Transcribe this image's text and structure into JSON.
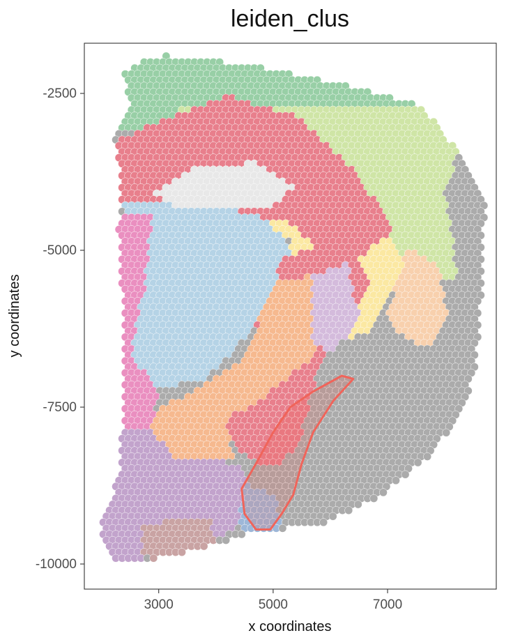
{
  "chart_data": {
    "type": "scatter",
    "title": "leiden_clus",
    "xlabel": "x coordinates",
    "ylabel": "y coordinates",
    "xlim": [
      1700,
      8900
    ],
    "ylim": [
      -10400,
      -1700
    ],
    "x_ticks": [
      3000,
      5000,
      7000
    ],
    "y_ticks": [
      -2500,
      -5000,
      -7500,
      -10000
    ],
    "x_tick_labels": [
      "3000",
      "5000",
      "7000"
    ],
    "y_tick_labels": [
      "-2500",
      "-5000",
      "-7500",
      "-10000"
    ],
    "grid": false,
    "legend": "none",
    "spot_spacing": 110,
    "cluster_colors": {
      "green": "#98cfa6",
      "lightgreen": "#cfe5a6",
      "yellow": "#fbe8a2",
      "lightgray": "#e8e8e8",
      "red": "#e87f8c",
      "lightblue": "#b5d3e6",
      "orange": "#f6b98f",
      "pink": "#ea8fc0",
      "purple": "#c2a3cc",
      "gray": "#ababab",
      "peach": "#f8d0ad",
      "blue": "#9db7d8",
      "brown": "#c9a3a3",
      "lilac": "#d4bbdc"
    },
    "tissue_outline": [
      [
        3100,
        -1900
      ],
      [
        4600,
        -2050
      ],
      [
        6200,
        -2350
      ],
      [
        7600,
        -2700
      ],
      [
        8300,
        -3500
      ],
      [
        8700,
        -4300
      ],
      [
        8650,
        -5500
      ],
      [
        8550,
        -6800
      ],
      [
        8300,
        -7600
      ],
      [
        7700,
        -8300
      ],
      [
        6900,
        -8900
      ],
      [
        5900,
        -9350
      ],
      [
        4600,
        -9500
      ],
      [
        3900,
        -9700
      ],
      [
        3100,
        -9900
      ],
      [
        2200,
        -9950
      ],
      [
        1950,
        -9500
      ],
      [
        2300,
        -8600
      ],
      [
        2400,
        -7500
      ],
      [
        2400,
        -6500
      ],
      [
        2350,
        -5500
      ],
      [
        2300,
        -4600
      ],
      [
        2350,
        -3700
      ],
      [
        2200,
        -3200
      ],
      [
        2500,
        -2800
      ],
      [
        2400,
        -2200
      ],
      [
        2700,
        -1950
      ]
    ],
    "cluster_regions": [
      {
        "cluster": "green",
        "polygon": [
          [
            2100,
            -1700
          ],
          [
            8800,
            -1700
          ],
          [
            8800,
            -2750
          ],
          [
            2100,
            -3150
          ]
        ]
      },
      {
        "cluster": "lightgreen",
        "polygon": [
          [
            3000,
            -2700
          ],
          [
            8800,
            -2700
          ],
          [
            8800,
            -5500
          ],
          [
            6500,
            -5500
          ],
          [
            5200,
            -3100
          ]
        ]
      },
      {
        "cluster": "yellow",
        "polygon": [
          [
            2400,
            -3300
          ],
          [
            4000,
            -2800
          ],
          [
            5400,
            -3000
          ],
          [
            6200,
            -3900
          ],
          [
            6800,
            -4400
          ],
          [
            7300,
            -5200
          ],
          [
            6400,
            -6900
          ],
          [
            5800,
            -7000
          ],
          [
            5400,
            -6300
          ],
          [
            5300,
            -4800
          ],
          [
            3500,
            -4300
          ],
          [
            2400,
            -4250
          ]
        ]
      },
      {
        "cluster": "peach",
        "polygon": [
          [
            7350,
            -5000
          ],
          [
            7900,
            -5200
          ],
          [
            8050,
            -6000
          ],
          [
            7700,
            -6700
          ],
          [
            7300,
            -6700
          ],
          [
            7000,
            -6000
          ]
        ]
      },
      {
        "cluster": "red",
        "polygon": [
          [
            2100,
            -3300
          ],
          [
            3200,
            -2900
          ],
          [
            4200,
            -2550
          ],
          [
            5400,
            -2850
          ],
          [
            6500,
            -3800
          ],
          [
            7100,
            -4700
          ],
          [
            6100,
            -5400
          ],
          [
            5400,
            -4600
          ],
          [
            3600,
            -4300
          ],
          [
            2400,
            -4300
          ],
          [
            2100,
            -3900
          ]
        ]
      },
      {
        "cluster": "lightgray",
        "polygon": [
          [
            2950,
            -4100
          ],
          [
            3600,
            -3700
          ],
          [
            4700,
            -3600
          ],
          [
            5400,
            -4000
          ],
          [
            4900,
            -4350
          ],
          [
            3400,
            -4350
          ]
        ]
      },
      {
        "cluster": "lightblue",
        "polygon": [
          [
            2400,
            -4200
          ],
          [
            3800,
            -4350
          ],
          [
            4700,
            -4400
          ],
          [
            5200,
            -4800
          ],
          [
            5500,
            -5400
          ],
          [
            4600,
            -6300
          ],
          [
            3800,
            -7100
          ],
          [
            2900,
            -7200
          ],
          [
            2500,
            -6800
          ],
          [
            2700,
            -5500
          ],
          [
            2800,
            -4700
          ],
          [
            2400,
            -4500
          ]
        ]
      },
      {
        "cluster": "red",
        "polygon": [
          [
            5200,
            -5100
          ],
          [
            6300,
            -4900
          ],
          [
            6700,
            -5600
          ],
          [
            6200,
            -6400
          ],
          [
            5700,
            -7200
          ],
          [
            5500,
            -8100
          ],
          [
            5000,
            -8500
          ],
          [
            4400,
            -8200
          ],
          [
            4100,
            -7600
          ],
          [
            4500,
            -6700
          ]
        ]
      },
      {
        "cluster": "orange",
        "polygon": [
          [
            5100,
            -5500
          ],
          [
            5800,
            -5400
          ],
          [
            6200,
            -6100
          ],
          [
            5600,
            -6800
          ],
          [
            4900,
            -7300
          ],
          [
            4200,
            -7700
          ],
          [
            4300,
            -8300
          ],
          [
            3800,
            -8400
          ],
          [
            3100,
            -8400
          ],
          [
            2800,
            -7600
          ],
          [
            3500,
            -7300
          ],
          [
            4400,
            -6800
          ]
        ]
      },
      {
        "cluster": "lilac",
        "polygon": [
          [
            5700,
            -5400
          ],
          [
            6300,
            -5200
          ],
          [
            6500,
            -6000
          ],
          [
            6100,
            -6700
          ],
          [
            5700,
            -6500
          ]
        ]
      },
      {
        "cluster": "pink",
        "polygon": [
          [
            2200,
            -4400
          ],
          [
            2900,
            -4400
          ],
          [
            2750,
            -5600
          ],
          [
            2500,
            -6700
          ],
          [
            3000,
            -7200
          ],
          [
            2900,
            -7800
          ],
          [
            2400,
            -7900
          ],
          [
            2100,
            -6500
          ],
          [
            2100,
            -5200
          ]
        ]
      },
      {
        "cluster": "purple",
        "polygon": [
          [
            1900,
            -7900
          ],
          [
            2900,
            -7900
          ],
          [
            3300,
            -8300
          ],
          [
            4400,
            -8400
          ],
          [
            4700,
            -9100
          ],
          [
            4300,
            -9500
          ],
          [
            3300,
            -9700
          ],
          [
            2200,
            -10100
          ],
          [
            1900,
            -9500
          ]
        ]
      },
      {
        "cluster": "gray",
        "polygon": [
          [
            5800,
            -6800
          ],
          [
            6300,
            -6400
          ],
          [
            7100,
            -6300
          ],
          [
            7800,
            -6600
          ],
          [
            8300,
            -6000
          ],
          [
            8200,
            -5200
          ],
          [
            8000,
            -4100
          ],
          [
            8250,
            -3400
          ],
          [
            8900,
            -3400
          ],
          [
            8900,
            -10000
          ],
          [
            4700,
            -10000
          ],
          [
            4800,
            -9100
          ],
          [
            5300,
            -8400
          ],
          [
            5700,
            -7400
          ]
        ]
      },
      {
        "cluster": "blue",
        "polygon": [
          [
            4500,
            -8700
          ],
          [
            5000,
            -8900
          ],
          [
            5200,
            -9400
          ],
          [
            4800,
            -9600
          ],
          [
            4400,
            -9400
          ]
        ]
      },
      {
        "cluster": "brown",
        "polygon": [
          [
            2700,
            -9350
          ],
          [
            3900,
            -9300
          ],
          [
            4000,
            -9650
          ],
          [
            3500,
            -9950
          ],
          [
            2700,
            -9900
          ]
        ]
      }
    ],
    "highlight_polygon": [
      [
        6200,
        -7000
      ],
      [
        6400,
        -7050
      ],
      [
        6050,
        -7400
      ],
      [
        5700,
        -7900
      ],
      [
        5500,
        -8400
      ],
      [
        5350,
        -8900
      ],
      [
        5150,
        -9200
      ],
      [
        4950,
        -9450
      ],
      [
        4700,
        -9450
      ],
      [
        4500,
        -9200
      ],
      [
        4450,
        -8800
      ],
      [
        4700,
        -8400
      ],
      [
        5000,
        -7900
      ],
      [
        5300,
        -7500
      ],
      [
        5700,
        -7250
      ]
    ],
    "highlight_color": "#f0645a"
  }
}
